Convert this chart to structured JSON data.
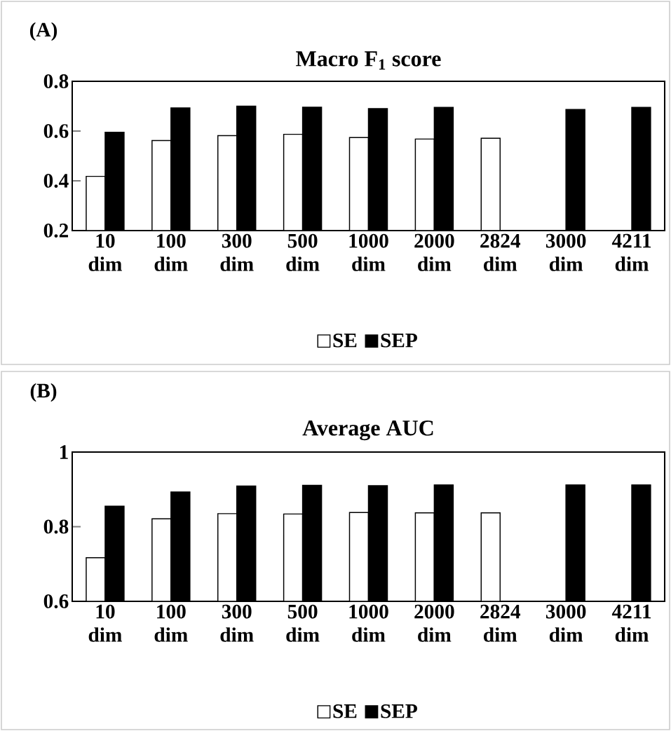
{
  "chart_data": [
    {
      "type": "bar",
      "title": "Macro F$_{1}$ score",
      "annotations": [
        "(A)"
      ],
      "categories": [
        "10 dim",
        "100 dim",
        "300 dim",
        "500 dim",
        "1000 dim",
        "2000 dim",
        "2824 dim",
        "3000 dim",
        "4211 dim"
      ],
      "series": [
        {
          "name": "SE",
          "color": "#ffffff",
          "values": [
            0.418,
            0.562,
            0.582,
            0.587,
            0.574,
            0.568,
            0.571,
            null,
            null
          ]
        },
        {
          "name": "SEP",
          "color": "#000000",
          "values": [
            0.595,
            0.693,
            0.7,
            0.696,
            0.69,
            0.695,
            null,
            0.687,
            0.695
          ]
        }
      ],
      "ylim": [
        0.2,
        0.8
      ],
      "yticks": [
        0.2,
        0.4,
        0.6,
        0.8
      ],
      "grid": false,
      "legend": "bottom"
    },
    {
      "type": "bar",
      "title": "Average AUC",
      "annotations": [
        "(B)"
      ],
      "categories": [
        "10 dim",
        "100 dim",
        "300 dim",
        "500 dim",
        "1000 dim",
        "2000 dim",
        "2824 dim",
        "3000 dim",
        "4211 dim"
      ],
      "series": [
        {
          "name": "SE",
          "color": "#ffffff",
          "values": [
            0.717,
            0.821,
            0.835,
            0.834,
            0.838,
            0.837,
            0.837,
            null,
            null
          ]
        },
        {
          "name": "SEP",
          "color": "#000000",
          "values": [
            0.855,
            0.893,
            0.909,
            0.911,
            0.91,
            0.912,
            null,
            0.912,
            0.912
          ]
        }
      ],
      "ylim": [
        0.6,
        1
      ],
      "yticks": [
        0.6,
        0.8,
        1
      ],
      "grid": false,
      "legend": "bottom"
    }
  ]
}
